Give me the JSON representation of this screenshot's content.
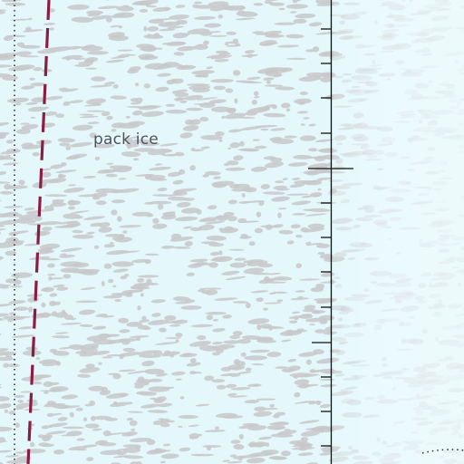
{
  "map": {
    "labels": {
      "pack_ice": "pack ice"
    },
    "colors": {
      "water": "#e4f8fb",
      "ice_texture": "#c8c8ca",
      "boundary_dashed": "#8b1d45",
      "graticule_line": "#111111"
    }
  }
}
